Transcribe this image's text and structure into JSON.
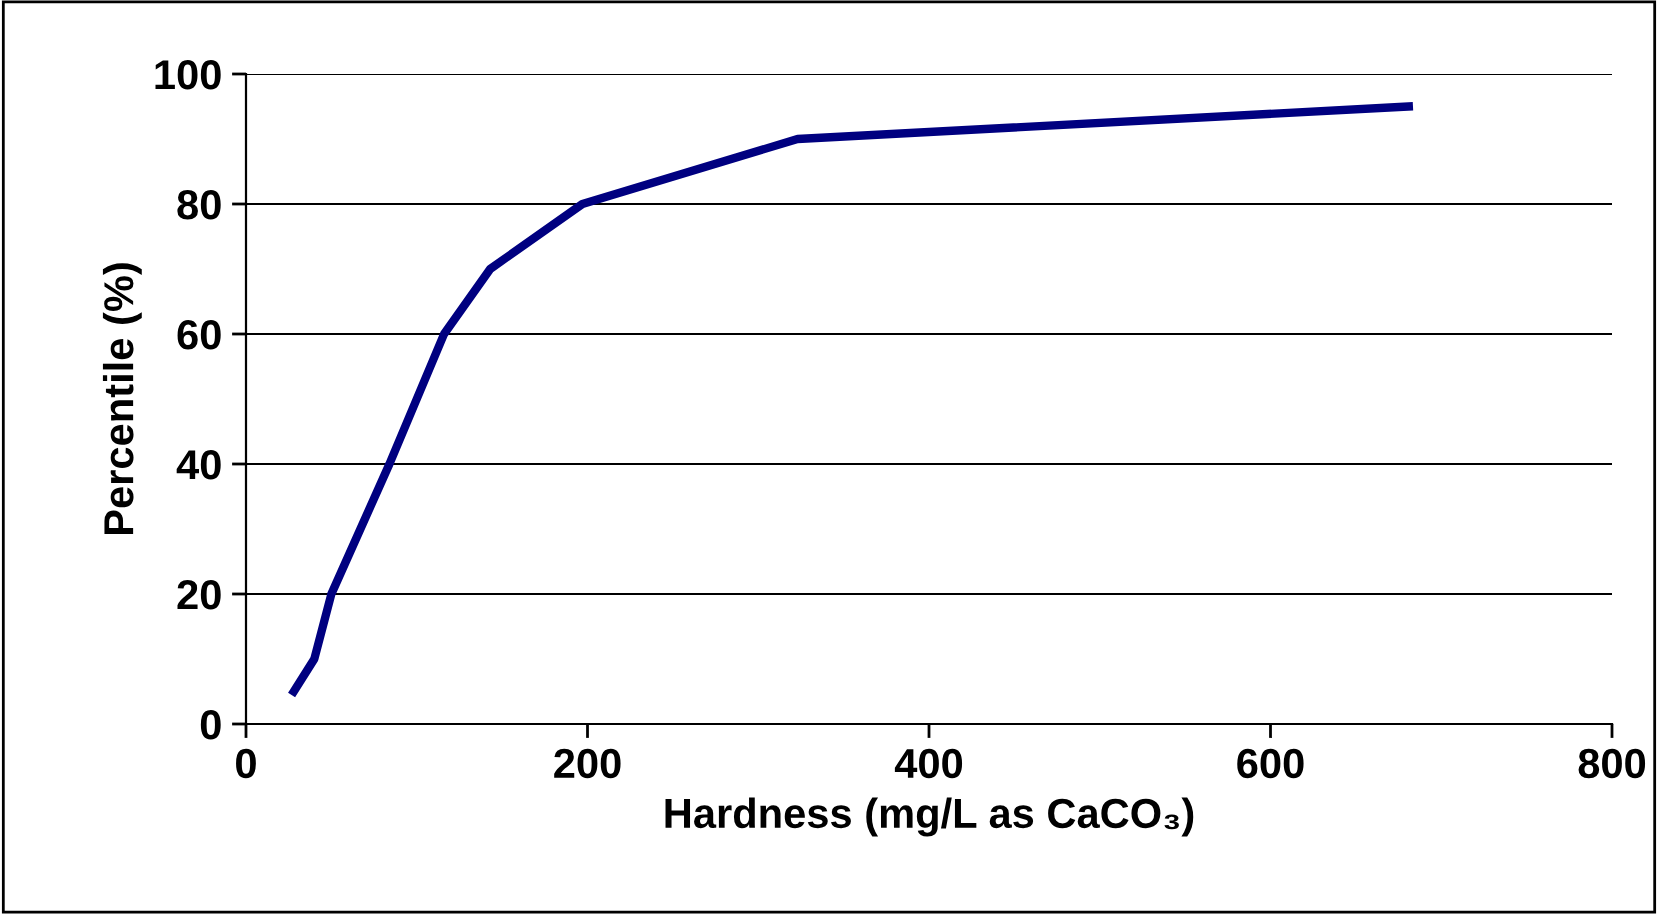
{
  "chart_data": {
    "type": "line",
    "xlabel": "Hardness (mg/L as CaCO₃)",
    "ylabel": "Percentile (%)",
    "series": [
      {
        "color": "#000080",
        "x": [
          28,
          40,
          50,
          67,
          84,
          100,
          116,
          143,
          197,
          323,
          681
        ],
        "values": [
          5,
          10,
          20,
          30,
          40,
          50,
          60,
          70,
          80,
          90,
          95
        ]
      }
    ],
    "xlim": [
      0,
      800
    ],
    "xticks": [
      0,
      200,
      400,
      600,
      800
    ],
    "ylim": [
      0,
      100
    ],
    "yticks": [
      0,
      20,
      40,
      60,
      80,
      100
    ],
    "grid": "y",
    "marker": "none",
    "line_style": "solid"
  }
}
